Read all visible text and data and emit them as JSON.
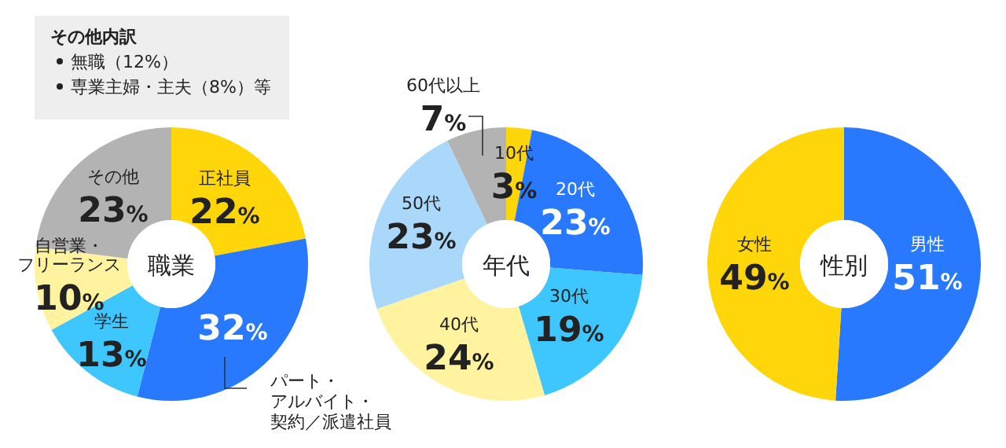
{
  "chart_data": [
    {
      "type": "donut",
      "title": "職業",
      "categories": [
        "正社員",
        "パート・アルバイト・契約／派遣社員",
        "学生",
        "自営業・フリーランス",
        "その他"
      ],
      "values": [
        22,
        32,
        13,
        10,
        23
      ],
      "value_labels": [
        "22%",
        "32%",
        "13%",
        "10%",
        "23%"
      ],
      "colors": [
        "#ffd60a",
        "#2979ff",
        "#3ec6ff",
        "#fff3a0",
        "#b3b3b3"
      ],
      "annotations": [
        "その他内訳",
        "無職（12%）",
        "専業主婦・主夫（8%）等"
      ]
    },
    {
      "type": "donut",
      "title": "年代",
      "categories": [
        "10代",
        "20代",
        "30代",
        "40代",
        "50代",
        "60代以上"
      ],
      "values": [
        3,
        23,
        19,
        24,
        23,
        7
      ],
      "value_labels": [
        "3%",
        "23%",
        "19%",
        "24%",
        "23%",
        "7%"
      ],
      "colors": [
        "#ffd60a",
        "#2979ff",
        "#3ec6ff",
        "#fff3a0",
        "#a9d8fb",
        "#b3b3b3"
      ]
    },
    {
      "type": "donut",
      "title": "性別",
      "categories": [
        "男性",
        "女性"
      ],
      "values": [
        51,
        49
      ],
      "value_labels": [
        "51%",
        "49%"
      ],
      "colors": [
        "#2979ff",
        "#ffd60a"
      ]
    }
  ]
}
